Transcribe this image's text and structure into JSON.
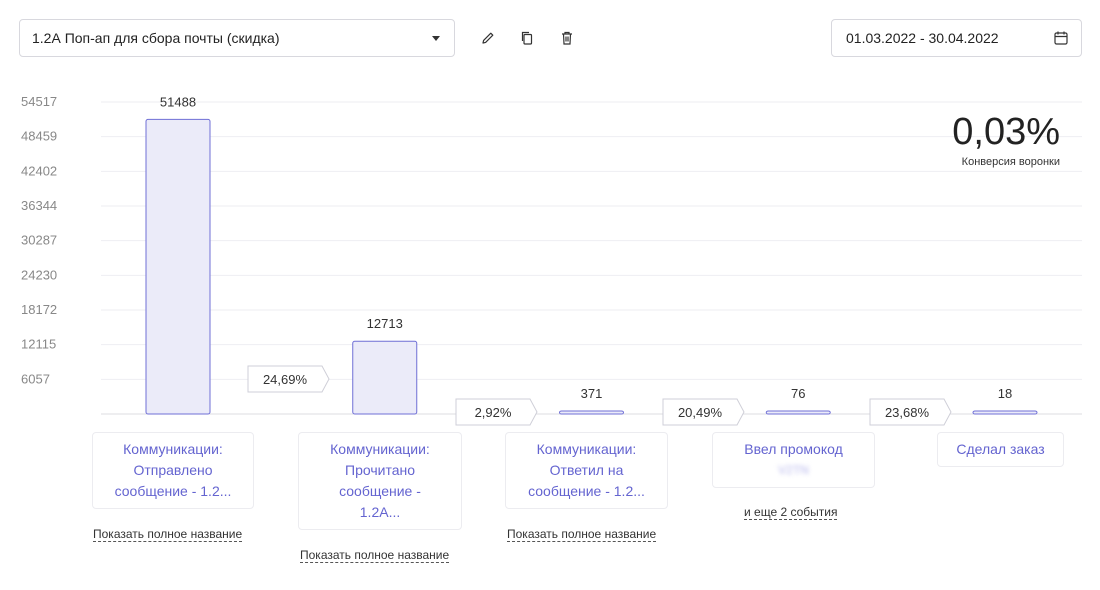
{
  "toolbar": {
    "funnel_name": "1.2А Поп-ап для сбора почты (скидка)",
    "date_range": "01.03.2022 - 30.04.2022"
  },
  "icons": {
    "dropdown": "caret-down-icon",
    "edit": "pencil-icon",
    "copy": "copy-icon",
    "delete": "trash-icon",
    "calendar": "calendar-icon"
  },
  "colors": {
    "bar_fill": "#ebebf9",
    "bar_stroke": "#6f6fd6",
    "link": "#6464d0"
  },
  "conversion": {
    "value": "0,03%",
    "label": "Конверсия воронки"
  },
  "chart_data": {
    "type": "bar",
    "y_ticks": [
      "54517",
      "48459",
      "42402",
      "36344",
      "30287",
      "24230",
      "18172",
      "12115",
      "6057"
    ],
    "ylim": [
      0,
      54517
    ],
    "grid": true,
    "categories": [
      "Коммуникации: Отправлено сообщение - 1.2...",
      "Коммуникации: Прочитано сообщение - 1.2А...",
      "Коммуникации: Ответил на сообщение - 1.2...",
      "Ввел промокод",
      "Сделал заказ"
    ],
    "values": [
      51488,
      12713,
      371,
      76,
      18
    ],
    "value_labels": [
      "51488",
      "12713",
      "371",
      "76",
      "18"
    ],
    "step_conversions": [
      "24,69%",
      "2,92%",
      "20,49%",
      "23,68%"
    ]
  },
  "steps": [
    {
      "lines": [
        "Коммуникации:",
        "Отправлено",
        "сообщение - 1.2..."
      ],
      "link": "Показать полное название"
    },
    {
      "lines": [
        "Коммуникации:",
        "Прочитано",
        "сообщение -",
        "1.2А..."
      ],
      "link": "Показать полное название"
    },
    {
      "lines": [
        "Коммуникации:",
        "Ответил на",
        "сообщение - 1.2..."
      ],
      "link": "Показать полное название"
    },
    {
      "lines": [
        "Ввел промокод"
      ],
      "blurred": "V2TN",
      "link": "и еще 2 события"
    },
    {
      "lines": [
        "Сделал заказ"
      ]
    }
  ]
}
